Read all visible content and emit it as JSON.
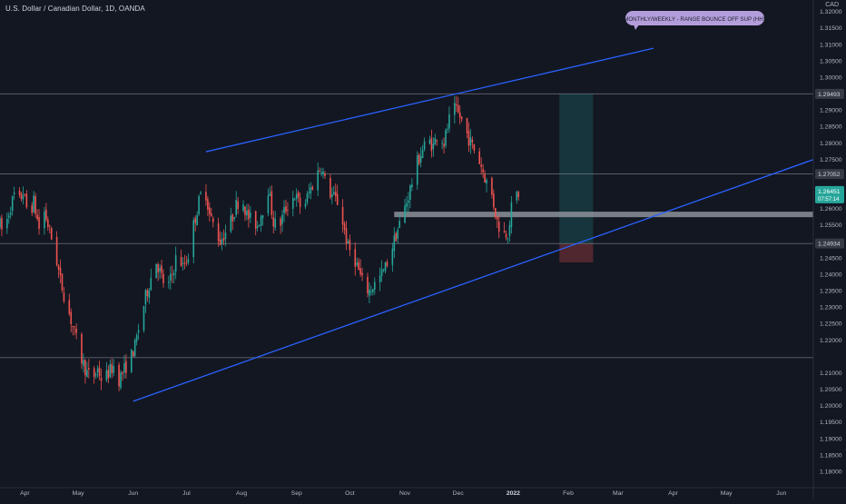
{
  "symbol": {
    "title": "U.S. Dollar / Canadian Dollar, 1D, OANDA"
  },
  "price_scale": {
    "currency": "CAD"
  },
  "colors": {
    "background": "#131722",
    "up": "#26a69a",
    "down": "#ef5350",
    "trendline": "#2962ff",
    "hline": "#787b86",
    "zone": "#787b86",
    "note": "#b39ddb",
    "target_zone": "#26a69a",
    "stop_zone": "#ef5350"
  },
  "note": {
    "text": "MONTHLY/WEEKLY - RANGE BOUNCE OFF SUP (HH)"
  },
  "chart_data": {
    "type": "candlestick",
    "title": "U.S. Dollar / Canadian Dollar, 1D, OANDA",
    "y_ticks": [
      "1.32000",
      "1.31500",
      "1.31000",
      "1.30500",
      "1.30000",
      "1.29000",
      "1.28500",
      "1.28000",
      "1.27500",
      "1.26000",
      "1.25500",
      "1.24500",
      "1.24000",
      "1.23500",
      "1.23000",
      "1.22500",
      "1.22000",
      "1.21000",
      "1.20500",
      "1.20000",
      "1.19500",
      "1.19000",
      "1.18500",
      "1.18000"
    ],
    "y_tick_values": [
      1.32,
      1.315,
      1.31,
      1.305,
      1.3,
      1.29,
      1.285,
      1.28,
      1.275,
      1.26,
      1.255,
      1.245,
      1.24,
      1.235,
      1.23,
      1.225,
      1.22,
      1.21,
      1.205,
      1.2,
      1.195,
      1.19,
      1.185,
      1.18
    ],
    "ylim": [
      1.175,
      1.3235
    ],
    "x_ticks": [
      {
        "label": "Apr",
        "date": "2021-04-01"
      },
      {
        "label": "May",
        "date": "2021-05-01"
      },
      {
        "label": "Jun",
        "date": "2021-06-01"
      },
      {
        "label": "Jul",
        "date": "2021-07-01"
      },
      {
        "label": "Aug",
        "date": "2021-08-01"
      },
      {
        "label": "Sep",
        "date": "2021-09-01"
      },
      {
        "label": "Oct",
        "date": "2021-10-01"
      },
      {
        "label": "Nov",
        "date": "2021-11-01"
      },
      {
        "label": "Dec",
        "date": "2021-12-01"
      },
      {
        "label": "2022",
        "date": "2022-01-01"
      },
      {
        "label": "Feb",
        "date": "2022-02-01"
      },
      {
        "label": "Mar",
        "date": "2022-03-01"
      },
      {
        "label": "Apr",
        "date": "2022-04-01"
      },
      {
        "label": "May",
        "date": "2022-05-01"
      },
      {
        "label": "Jun",
        "date": "2022-06-01"
      }
    ],
    "xlim": [
      "2021-03-18",
      "2022-06-19"
    ],
    "price_labels": [
      {
        "text": "1.29493",
        "value": 1.29493
      },
      {
        "text": "1.27052",
        "value": 1.27052
      },
      {
        "text": "1.24934",
        "value": 1.24934
      }
    ],
    "current_price": {
      "text": "1.26451",
      "value": 1.26451,
      "countdown": "07:57:14"
    },
    "horizontal_lines": [
      1.29493,
      1.27052,
      1.24934,
      1.2146
    ],
    "support_zone": {
      "value": 1.2582,
      "from": "2021-10-26",
      "to": "2022-06-19"
    },
    "trendlines": [
      {
        "from": {
          "date": "2021-06-01",
          "value": 1.2013
        },
        "to": {
          "date": "2022-06-19",
          "value": 1.2749
        }
      },
      {
        "from": {
          "date": "2021-07-12",
          "value": 1.2773
        },
        "to": {
          "date": "2022-03-21",
          "value": 1.3088
        }
      }
    ],
    "position": {
      "from": "2022-01-27",
      "to": "2022-02-15",
      "entry": 1.2493,
      "target": 1.2949,
      "stop": 1.2436
    },
    "ohlc_path": [
      [
        0,
        1.255
      ],
      [
        2,
        1.252
      ],
      [
        5,
        1.259
      ],
      [
        8,
        1.264
      ],
      [
        10,
        1.261
      ],
      [
        13,
        1.265
      ],
      [
        16,
        1.258
      ],
      [
        19,
        1.262
      ],
      [
        22,
        1.254
      ],
      [
        25,
        1.259
      ],
      [
        28,
        1.253
      ],
      [
        31,
        1.247
      ],
      [
        34,
        1.238
      ],
      [
        37,
        1.232
      ],
      [
        40,
        1.226
      ],
      [
        43,
        1.22
      ],
      [
        46,
        1.214
      ],
      [
        49,
        1.21
      ],
      [
        52,
        1.208
      ],
      [
        55,
        1.211
      ],
      [
        58,
        1.207
      ],
      [
        61,
        1.21
      ],
      [
        64,
        1.212
      ],
      [
        67,
        1.208
      ],
      [
        70,
        1.211
      ],
      [
        73,
        1.214
      ],
      [
        76,
        1.218
      ],
      [
        79,
        1.226
      ],
      [
        82,
        1.233
      ],
      [
        85,
        1.239
      ],
      [
        88,
        1.244
      ],
      [
        91,
        1.239
      ],
      [
        94,
        1.235
      ],
      [
        97,
        1.24
      ],
      [
        100,
        1.247
      ],
      [
        103,
        1.242
      ],
      [
        106,
        1.246
      ],
      [
        109,
        1.255
      ],
      [
        112,
        1.262
      ],
      [
        115,
        1.268
      ],
      [
        118,
        1.258
      ],
      [
        121,
        1.254
      ],
      [
        124,
        1.25
      ],
      [
        127,
        1.253
      ],
      [
        130,
        1.256
      ],
      [
        133,
        1.261
      ],
      [
        136,
        1.264
      ],
      [
        139,
        1.258
      ],
      [
        142,
        1.256
      ],
      [
        145,
        1.255
      ],
      [
        148,
        1.26
      ],
      [
        151,
        1.266
      ],
      [
        154,
        1.256
      ],
      [
        157,
        1.254
      ],
      [
        160,
        1.259
      ],
      [
        163,
        1.262
      ],
      [
        166,
        1.264
      ],
      [
        169,
        1.261
      ],
      [
        172,
        1.262
      ],
      [
        175,
        1.266
      ],
      [
        178,
        1.27
      ],
      [
        181,
        1.273
      ],
      [
        184,
        1.266
      ],
      [
        187,
        1.264
      ],
      [
        190,
        1.262
      ],
      [
        193,
        1.256
      ],
      [
        196,
        1.248
      ],
      [
        199,
        1.246
      ],
      [
        202,
        1.241
      ],
      [
        205,
        1.236
      ],
      [
        208,
        1.235
      ],
      [
        211,
        1.237
      ],
      [
        214,
        1.239
      ],
      [
        217,
        1.242
      ],
      [
        220,
        1.247
      ],
      [
        223,
        1.252
      ],
      [
        226,
        1.257
      ],
      [
        229,
        1.262
      ],
      [
        232,
        1.268
      ],
      [
        235,
        1.274
      ],
      [
        238,
        1.278
      ],
      [
        241,
        1.281
      ],
      [
        244,
        1.279
      ],
      [
        247,
        1.284
      ],
      [
        250,
        1.28
      ],
      [
        253,
        1.287
      ],
      [
        256,
        1.29
      ],
      [
        259,
        1.288
      ],
      [
        262,
        1.284
      ],
      [
        265,
        1.28
      ],
      [
        268,
        1.277
      ],
      [
        271,
        1.273
      ],
      [
        274,
        1.268
      ],
      [
        277,
        1.264
      ],
      [
        280,
        1.256
      ],
      [
        283,
        1.252
      ],
      [
        286,
        1.253
      ],
      [
        288,
        1.26
      ],
      [
        290,
        1.264
      ],
      [
        292,
        1.2645
      ]
    ]
  }
}
